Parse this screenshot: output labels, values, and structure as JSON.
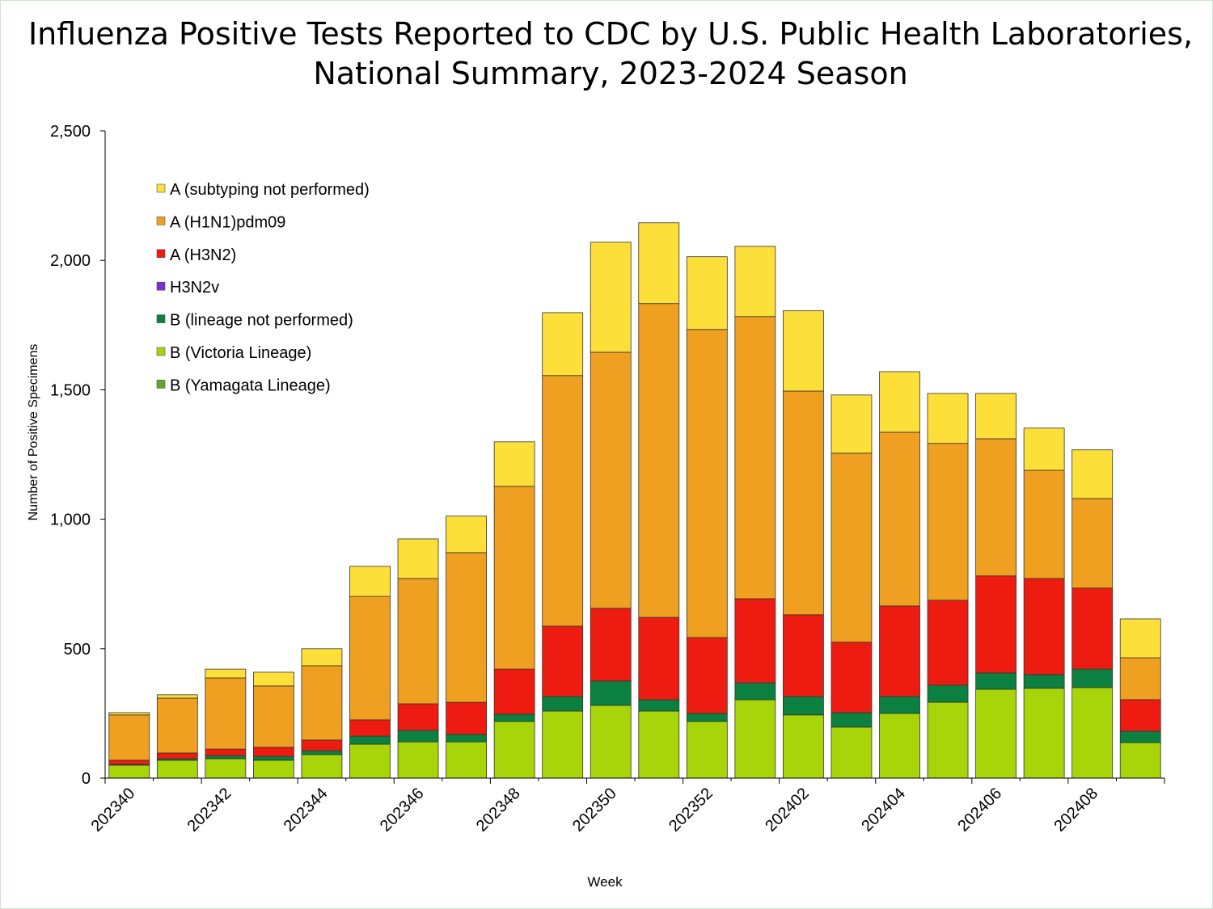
{
  "chart_data": {
    "type": "bar",
    "stacked": true,
    "title_line1": "Influenza Positive Tests Reported to CDC by U.S. Public Health Laboratories,",
    "title_line2": "National Summary, 2023-2024 Season",
    "xlabel": "Week",
    "ylabel": "Number of Positive Specimens",
    "ylim": [
      0,
      2500
    ],
    "yticks": [
      0,
      500,
      1000,
      1500,
      2000,
      2500
    ],
    "ytick_labels": [
      "0",
      "500",
      "1,000",
      "1,500",
      "2,000",
      "2,500"
    ],
    "categories": [
      "202340",
      "202341",
      "202342",
      "202343",
      "202344",
      "202345",
      "202346",
      "202347",
      "202348",
      "202349",
      "202350",
      "202351",
      "202352",
      "202401",
      "202402",
      "202403",
      "202404",
      "202405",
      "202406",
      "202407",
      "202408",
      "202409"
    ],
    "xtick_labels": [
      "202340",
      "202342",
      "202344",
      "202346",
      "202348",
      "202350",
      "202352",
      "202402",
      "202404",
      "202406",
      "202408"
    ],
    "legend_position": "top-left",
    "series": [
      {
        "name": "B (Victoria Lineage)",
        "color": "#A8D40A",
        "values": [
          50,
          69,
          75,
          69,
          91,
          131,
          140,
          140,
          219,
          259,
          281,
          259,
          219,
          303,
          244,
          197,
          250,
          293,
          343,
          347,
          350,
          137
        ]
      },
      {
        "name": "B (Yamagata Lineage)",
        "color": "#5FA82A",
        "values": [
          0,
          0,
          0,
          0,
          0,
          0,
          0,
          0,
          0,
          0,
          0,
          0,
          0,
          0,
          0,
          0,
          0,
          0,
          0,
          0,
          0,
          0
        ]
      },
      {
        "name": "B (lineage not performed)",
        "color": "#0B8040",
        "values": [
          3,
          6,
          12,
          15,
          15,
          31,
          44,
          29,
          28,
          56,
          94,
          44,
          31,
          65,
          71,
          56,
          65,
          66,
          63,
          53,
          71,
          44
        ]
      },
      {
        "name": "H3N2v",
        "color": "#7B2FD0",
        "values": [
          0,
          0,
          0,
          0,
          0,
          0,
          0,
          0,
          0,
          0,
          0,
          0,
          0,
          0,
          0,
          0,
          0,
          0,
          0,
          0,
          0,
          0
        ]
      },
      {
        "name": "A (H3N2)",
        "color": "#EE1C10",
        "values": [
          16,
          22,
          25,
          35,
          41,
          63,
          103,
          124,
          174,
          272,
          281,
          318,
          293,
          325,
          316,
          272,
          350,
          328,
          375,
          371,
          313,
          122
        ]
      },
      {
        "name": "A (H1N1)pdm09",
        "color": "#F0A020",
        "values": [
          175,
          212,
          275,
          237,
          287,
          477,
          484,
          578,
          706,
          968,
          989,
          1212,
          1190,
          1090,
          864,
          730,
          671,
          606,
          530,
          418,
          346,
          162
        ]
      },
      {
        "name": "A (subtyping not performed)",
        "color": "#FDDF3A",
        "values": [
          9,
          13,
          34,
          53,
          66,
          116,
          153,
          141,
          172,
          243,
          425,
          312,
          281,
          271,
          310,
          225,
          234,
          193,
          175,
          163,
          188,
          150
        ]
      }
    ],
    "legend_order": [
      "A (subtyping not performed)",
      "A (H1N1)pdm09",
      "A (H3N2)",
      "H3N2v",
      "B (lineage not performed)",
      "B (Victoria Lineage)",
      "B (Yamagata Lineage)"
    ]
  }
}
